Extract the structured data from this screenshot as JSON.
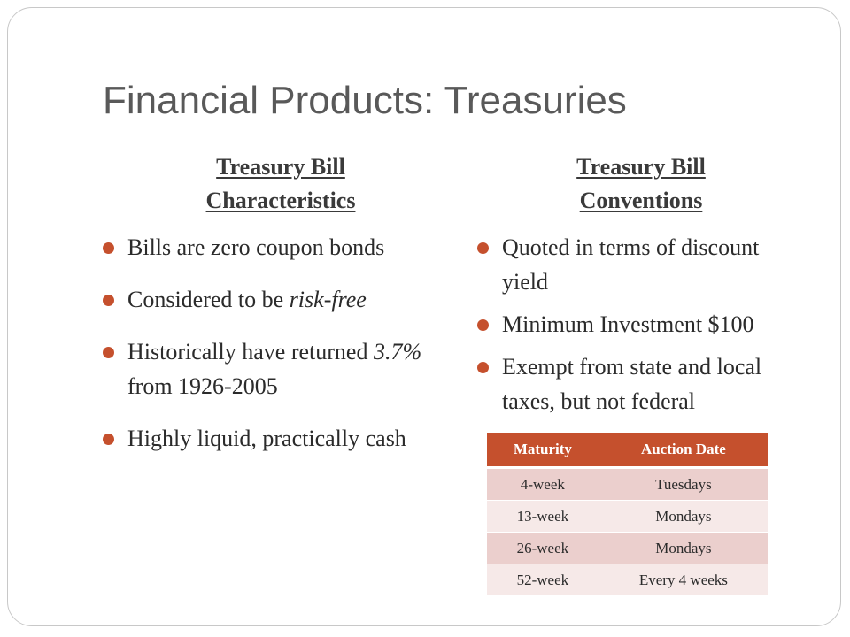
{
  "title": "Financial Products: Treasuries",
  "colors": {
    "accent": "#c5502d",
    "table_header": "#c5502d",
    "row_band_dark": "#ebcfcd",
    "row_band_light": "#f6e9e8"
  },
  "left": {
    "heading_line1": "Treasury Bill",
    "heading_line2": "Characteristics",
    "bullets": [
      {
        "text": "Bills are zero coupon bonds"
      },
      {
        "before": "Considered to be ",
        "italic": "risk-free"
      },
      {
        "before": "Historically have returned ",
        "italic": "3.7%",
        "after": " from 1926-2005"
      },
      {
        "text": "Highly liquid, practically cash"
      }
    ]
  },
  "right": {
    "heading_line1": "Treasury Bill",
    "heading_line2": "Conventions",
    "bullets": [
      {
        "text": "Quoted in terms of discount yield"
      },
      {
        "text": "Minimum Investment $100"
      },
      {
        "text": "Exempt from state and local taxes, but not federal"
      }
    ]
  },
  "table": {
    "headers": [
      "Maturity",
      "Auction Date"
    ],
    "rows": [
      [
        "4-week",
        "Tuesdays"
      ],
      [
        "13-week",
        "Mondays"
      ],
      [
        "26-week",
        "Mondays"
      ],
      [
        "52-week",
        "Every 4 weeks"
      ]
    ]
  }
}
